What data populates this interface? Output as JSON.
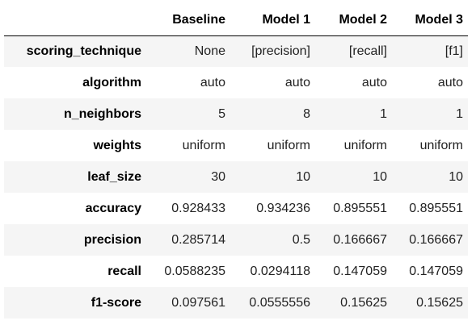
{
  "table": {
    "columns": [
      "",
      "Baseline",
      "Model 1",
      "Model 2",
      "Model 3"
    ],
    "rows": [
      {
        "index": "scoring_technique",
        "values": [
          "None",
          "[precision]",
          "[recall]",
          "[f1]"
        ]
      },
      {
        "index": "algorithm",
        "values": [
          "auto",
          "auto",
          "auto",
          "auto"
        ]
      },
      {
        "index": "n_neighbors",
        "values": [
          "5",
          "8",
          "1",
          "1"
        ]
      },
      {
        "index": "weights",
        "values": [
          "uniform",
          "uniform",
          "uniform",
          "uniform"
        ]
      },
      {
        "index": "leaf_size",
        "values": [
          "30",
          "10",
          "10",
          "10"
        ]
      },
      {
        "index": "accuracy",
        "values": [
          "0.928433",
          "0.934236",
          "0.895551",
          "0.895551"
        ]
      },
      {
        "index": "precision",
        "values": [
          "0.285714",
          "0.5",
          "0.166667",
          "0.166667"
        ]
      },
      {
        "index": "recall",
        "values": [
          "0.0588235",
          "0.0294118",
          "0.147059",
          "0.147059"
        ]
      },
      {
        "index": "f1-score",
        "values": [
          "0.097561",
          "0.0555556",
          "0.15625",
          "0.15625"
        ]
      }
    ]
  },
  "colors": {
    "stripe": "#f5f5f5",
    "header_border": "#000000"
  }
}
